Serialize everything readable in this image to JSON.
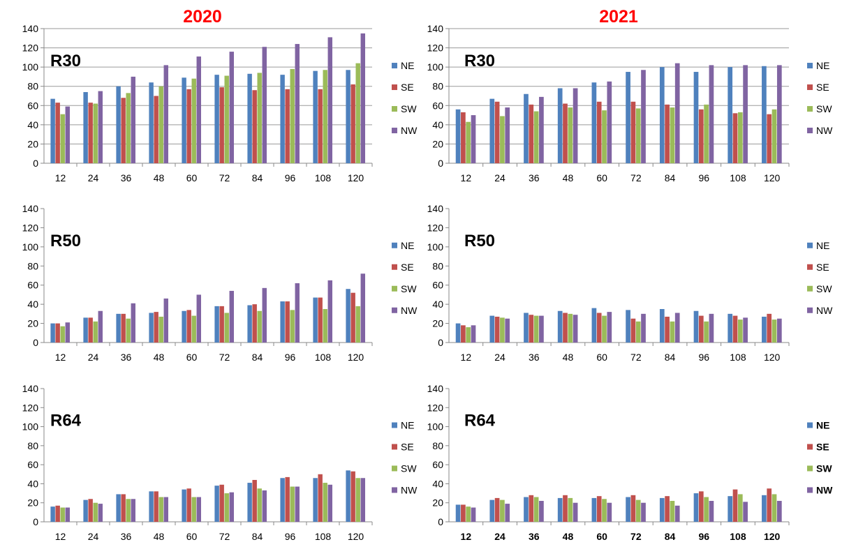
{
  "figure": {
    "year_titles": [
      "2020",
      "2021"
    ]
  },
  "chart_data": [
    {
      "type": "bar",
      "year": "2020",
      "label": "R30",
      "categories": [
        "12",
        "24",
        "36",
        "48",
        "60",
        "72",
        "84",
        "96",
        "108",
        "120"
      ],
      "ylim": [
        0,
        140
      ],
      "yticks": [
        0,
        20,
        40,
        60,
        80,
        100,
        120,
        140
      ],
      "grid": true,
      "legend": "right",
      "bold_labels": false,
      "series": [
        {
          "name": "NE",
          "color": "#4f81bd",
          "values": [
            67,
            74,
            80,
            84,
            89,
            92,
            93,
            92,
            96,
            97
          ]
        },
        {
          "name": "SE",
          "color": "#c0504d",
          "values": [
            63,
            63,
            68,
            70,
            77,
            79,
            76,
            77,
            77,
            82
          ]
        },
        {
          "name": "SW",
          "color": "#9bbb59",
          "values": [
            51,
            62,
            73,
            80,
            88,
            91,
            94,
            98,
            97,
            104
          ]
        },
        {
          "name": "NW",
          "color": "#8064a2",
          "values": [
            59,
            75,
            90,
            102,
            111,
            116,
            121,
            124,
            131,
            135
          ]
        }
      ]
    },
    {
      "type": "bar",
      "year": "2021",
      "label": "R30",
      "categories": [
        "12",
        "24",
        "36",
        "48",
        "60",
        "72",
        "84",
        "96",
        "108",
        "120"
      ],
      "ylim": [
        0,
        140
      ],
      "yticks": [
        0,
        20,
        40,
        60,
        80,
        100,
        120,
        140
      ],
      "grid": true,
      "legend": "right",
      "bold_labels": false,
      "series": [
        {
          "name": "NE",
          "color": "#4f81bd",
          "values": [
            56,
            67,
            72,
            78,
            84,
            95,
            100,
            95,
            100,
            101
          ]
        },
        {
          "name": "SE",
          "color": "#c0504d",
          "values": [
            53,
            64,
            61,
            62,
            64,
            64,
            61,
            56,
            52,
            51
          ]
        },
        {
          "name": "SW",
          "color": "#9bbb59",
          "values": [
            43,
            49,
            54,
            58,
            55,
            57,
            58,
            61,
            53,
            56
          ]
        },
        {
          "name": "NW",
          "color": "#8064a2",
          "values": [
            50,
            58,
            69,
            78,
            85,
            97,
            104,
            102,
            102,
            102
          ]
        }
      ]
    },
    {
      "type": "bar",
      "year": "2020",
      "label": "R50",
      "categories": [
        "12",
        "24",
        "36",
        "48",
        "60",
        "72",
        "84",
        "96",
        "108",
        "120"
      ],
      "ylim": [
        0,
        140
      ],
      "yticks": [
        0,
        20,
        40,
        60,
        80,
        100,
        120,
        140
      ],
      "grid": false,
      "legend": "right",
      "bold_labels": false,
      "series": [
        {
          "name": "NE",
          "color": "#4f81bd",
          "values": [
            20,
            26,
            30,
            31,
            33,
            38,
            39,
            43,
            47,
            56
          ]
        },
        {
          "name": "SE",
          "color": "#c0504d",
          "values": [
            20,
            26,
            30,
            32,
            34,
            38,
            40,
            43,
            47,
            52
          ]
        },
        {
          "name": "SW",
          "color": "#9bbb59",
          "values": [
            17,
            22,
            25,
            27,
            28,
            31,
            33,
            34,
            35,
            38
          ]
        },
        {
          "name": "NW",
          "color": "#8064a2",
          "values": [
            21,
            33,
            41,
            46,
            50,
            54,
            57,
            62,
            65,
            72
          ]
        }
      ]
    },
    {
      "type": "bar",
      "year": "2021",
      "label": "R50",
      "categories": [
        "12",
        "24",
        "36",
        "48",
        "60",
        "72",
        "84",
        "96",
        "108",
        "120"
      ],
      "ylim": [
        0,
        140
      ],
      "yticks": [
        0,
        20,
        40,
        60,
        80,
        100,
        120,
        140
      ],
      "grid": false,
      "legend": "right",
      "bold_labels": false,
      "series": [
        {
          "name": "NE",
          "color": "#4f81bd",
          "values": [
            20,
            28,
            31,
            33,
            36,
            34,
            35,
            33,
            30,
            27
          ]
        },
        {
          "name": "SE",
          "color": "#c0504d",
          "values": [
            18,
            27,
            29,
            31,
            31,
            25,
            27,
            28,
            28,
            30
          ]
        },
        {
          "name": "SW",
          "color": "#9bbb59",
          "values": [
            16,
            26,
            28,
            30,
            28,
            22,
            22,
            22,
            24,
            24
          ]
        },
        {
          "name": "NW",
          "color": "#8064a2",
          "values": [
            18,
            25,
            28,
            29,
            32,
            30,
            31,
            30,
            26,
            25
          ]
        }
      ]
    },
    {
      "type": "bar",
      "year": "2020",
      "label": "R64",
      "categories": [
        "12",
        "24",
        "36",
        "48",
        "60",
        "72",
        "84",
        "96",
        "108",
        "120"
      ],
      "ylim": [
        0,
        140
      ],
      "yticks": [
        0,
        20,
        40,
        60,
        80,
        100,
        120,
        140
      ],
      "grid": false,
      "legend": "right",
      "bold_labels": false,
      "series": [
        {
          "name": "NE",
          "color": "#4f81bd",
          "values": [
            16,
            23,
            29,
            32,
            34,
            38,
            41,
            46,
            46,
            54
          ]
        },
        {
          "name": "SE",
          "color": "#c0504d",
          "values": [
            17,
            24,
            29,
            32,
            35,
            39,
            44,
            47,
            50,
            53
          ]
        },
        {
          "name": "SW",
          "color": "#9bbb59",
          "values": [
            15,
            20,
            24,
            26,
            26,
            30,
            35,
            37,
            41,
            46
          ]
        },
        {
          "name": "NW",
          "color": "#8064a2",
          "values": [
            15,
            19,
            24,
            26,
            26,
            31,
            33,
            37,
            39,
            46
          ]
        }
      ]
    },
    {
      "type": "bar",
      "year": "2021",
      "label": "R64",
      "categories": [
        "12",
        "24",
        "36",
        "48",
        "60",
        "72",
        "84",
        "96",
        "108",
        "120"
      ],
      "ylim": [
        0,
        140
      ],
      "yticks": [
        0,
        20,
        40,
        60,
        80,
        100,
        120,
        140
      ],
      "grid": false,
      "legend": "right",
      "bold_labels": true,
      "series": [
        {
          "name": "NE",
          "color": "#4f81bd",
          "values": [
            18,
            23,
            26,
            25,
            25,
            26,
            25,
            30,
            27,
            28
          ]
        },
        {
          "name": "SE",
          "color": "#c0504d",
          "values": [
            18,
            25,
            28,
            28,
            27,
            28,
            27,
            32,
            34,
            35
          ]
        },
        {
          "name": "SW",
          "color": "#9bbb59",
          "values": [
            16,
            23,
            26,
            25,
            24,
            23,
            22,
            26,
            29,
            29
          ]
        },
        {
          "name": "NW",
          "color": "#8064a2",
          "values": [
            15,
            19,
            22,
            20,
            20,
            20,
            17,
            22,
            21,
            22
          ]
        }
      ]
    }
  ]
}
